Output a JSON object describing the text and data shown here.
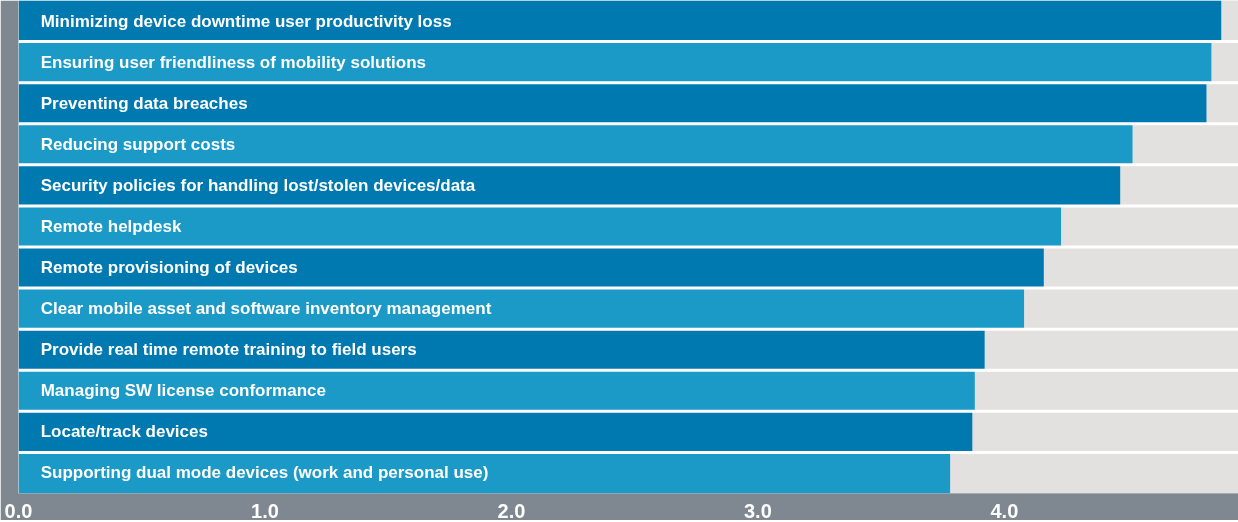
{
  "chart_data": {
    "type": "bar",
    "orientation": "horizontal",
    "tick_labels": "x",
    "grid": false,
    "categories": [
      "Minimizing device downtime user productivity loss",
      "Ensuring user friendliness of mobility solutions",
      "Preventing data breaches",
      "Reducing support costs",
      "Security  policies for handling lost/stolen devices/data",
      "Remote helpdesk",
      "Remote provisioning of devices",
      "Clear mobile asset and software inventory management",
      "Provide real time remote training to field users",
      "Managing SW license conformance",
      "Locate/track devices",
      "Supporting dual mode devices (work and personal use)"
    ],
    "values": [
      4.88,
      4.84,
      4.82,
      4.52,
      4.47,
      4.23,
      4.16,
      4.08,
      3.92,
      3.88,
      3.87,
      3.78
    ],
    "colors": [
      "#0079b0",
      "#1b9ac8",
      "#0079b0",
      "#1b9ac8",
      "#0079b0",
      "#1b9ac8",
      "#0079b0",
      "#1b9ac8",
      "#0079b0",
      "#1b9ac8",
      "#0079b0",
      "#1b9ac8"
    ],
    "xlim": [
      0,
      4.95
    ],
    "xticks": [
      {
        "value": 0,
        "label": "0.0"
      },
      {
        "value": 1,
        "label": "1.0"
      },
      {
        "value": 2,
        "label": "2.0"
      },
      {
        "value": 3,
        "label": "3.0"
      },
      {
        "value": 4,
        "label": "4.0"
      }
    ]
  }
}
